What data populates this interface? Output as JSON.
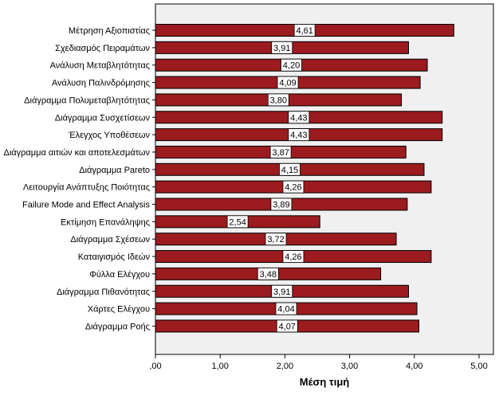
{
  "chart_data": {
    "type": "bar",
    "orientation": "horizontal",
    "categories": [
      "Μέτρηση Αξιοπιστίας",
      "Σχεδιασμός Πειραμάτων",
      "Ανάλυση Μεταβλητότητας",
      "Ανάλυση Παλινδρόμησης",
      "Διάγραμμα Πολυμεταβλητότητας",
      "Διάγραμμα Συσχετίσεων",
      "Έλεγχος Υποθέσεων",
      "Διάγραμμα αιτιών και αποτελεσμάτων",
      "Διάγραμμα Pareto",
      "Λειτουργία Ανάπτυξης Ποιότητας",
      "Failure Mode and Effect Analysis",
      "Εκτίμηση Επανάληψης",
      "Διάγραμμα Σχέσεων",
      "Καταιγισμός Ιδεών",
      "Φύλλα Ελέγχου",
      "Διάγραμμα Πιθανότητας",
      "Χάρτες Ελέγχου",
      "Διάγραμμα Ροής"
    ],
    "values": [
      4.61,
      3.91,
      4.2,
      4.09,
      3.8,
      4.43,
      4.43,
      3.87,
      4.15,
      4.26,
      3.89,
      2.54,
      3.72,
      4.26,
      3.48,
      3.91,
      4.04,
      4.07
    ],
    "data_labels": [
      "4,61",
      "3,91",
      "4,20",
      "4,09",
      "3,80",
      "4,43",
      "4,43",
      "3,87",
      "4,15",
      "4,26",
      "3,89",
      "2,54",
      "3,72",
      "4,26",
      "3,48",
      "3,91",
      "4,04",
      "4,07"
    ],
    "xlabel": "Μέση τιμή",
    "xlim": [
      0,
      5
    ],
    "x_ticks": [
      0,
      1,
      2,
      3,
      4,
      5
    ],
    "x_tick_labels": [
      ",00",
      "1,00",
      "2,00",
      "3,00",
      "4,00",
      "5,00"
    ],
    "grid": false,
    "legend": "none",
    "colors": {
      "bar_fill": "#9b1b1f",
      "bar_stroke": "#000000",
      "plot_background": "#f0f0f0",
      "label_box_fill": "#ffffff"
    }
  }
}
